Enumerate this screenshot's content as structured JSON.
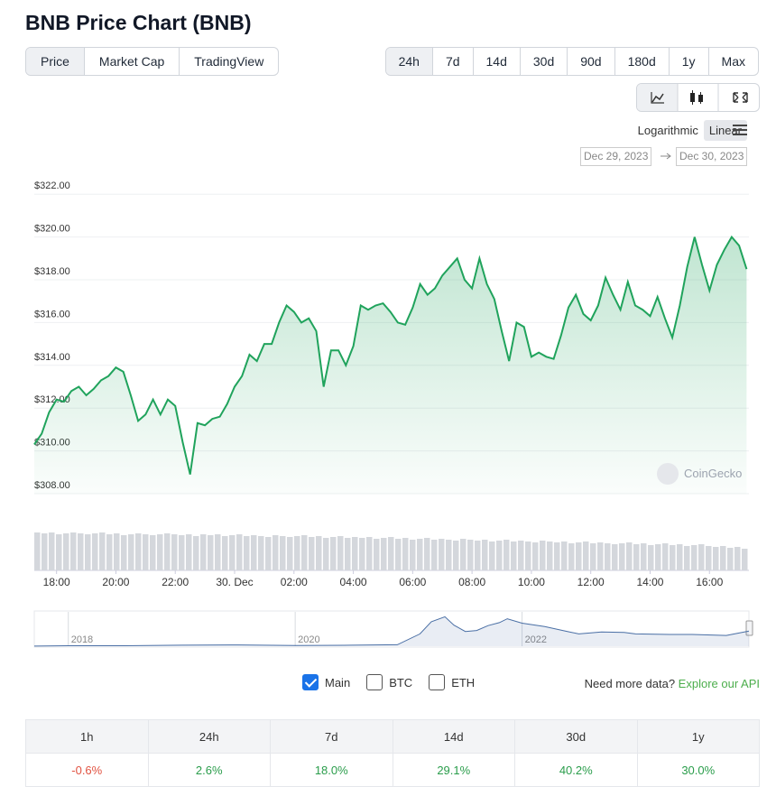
{
  "header": {
    "title": "BNB Price Chart (BNB)"
  },
  "tabs": [
    {
      "label": "Price",
      "active": true
    },
    {
      "label": "Market Cap",
      "active": false
    },
    {
      "label": "TradingView",
      "active": false
    }
  ],
  "ranges": [
    {
      "label": "24h",
      "active": true
    },
    {
      "label": "7d",
      "active": false
    },
    {
      "label": "14d",
      "active": false
    },
    {
      "label": "30d",
      "active": false
    },
    {
      "label": "90d",
      "active": false
    },
    {
      "label": "180d",
      "active": false
    },
    {
      "label": "1y",
      "active": false
    },
    {
      "label": "Max",
      "active": false
    }
  ],
  "scale": {
    "options": [
      {
        "label": "Logarithmic",
        "active": false
      },
      {
        "label": "Linear",
        "active": true
      }
    ]
  },
  "date_range": {
    "from": "Dec 29, 2023",
    "to": "Dec 30, 2023"
  },
  "chart_data": [
    {
      "type": "area",
      "color": "#20a35c",
      "x": [
        17.25,
        17.5,
        17.75,
        18,
        18.25,
        18.5,
        18.75,
        19,
        19.25,
        19.5,
        19.75,
        20,
        20.25,
        20.5,
        20.75,
        21,
        21.25,
        21.5,
        21.75,
        22,
        22.25,
        22.5,
        22.75,
        23,
        23.25,
        23.5,
        23.75,
        24,
        24.25,
        24.5,
        24.75,
        25,
        25.25,
        25.5,
        25.75,
        26,
        26.25,
        26.5,
        26.75,
        27,
        27.25,
        27.5,
        27.75,
        28,
        28.25,
        28.5,
        28.75,
        29,
        29.25,
        29.5,
        29.75,
        30,
        30.25,
        30.5,
        30.75,
        31,
        31.25,
        31.5,
        31.75,
        32,
        32.25,
        32.5,
        32.75,
        33,
        33.25,
        33.5,
        33.75,
        34,
        34.25,
        34.5,
        34.75,
        35,
        35.25,
        35.5,
        35.75,
        36,
        36.25,
        36.5,
        36.75,
        37,
        37.25,
        37.5,
        37.75,
        38,
        38.25,
        38.5,
        38.75,
        39,
        39.25,
        39.5,
        39.75,
        40,
        40.25,
        40.5,
        40.75,
        41,
        41.25
      ],
      "values": [
        310.3,
        310.8,
        311.8,
        312.4,
        312.3,
        312.8,
        313.0,
        312.6,
        312.9,
        313.3,
        313.5,
        313.9,
        313.7,
        312.6,
        311.4,
        311.7,
        312.4,
        311.7,
        312.4,
        312.1,
        310.4,
        308.9,
        311.3,
        311.2,
        311.5,
        311.6,
        312.2,
        313.0,
        313.5,
        314.5,
        314.2,
        315.0,
        315.0,
        316.0,
        316.8,
        316.5,
        316.0,
        316.2,
        315.6,
        313.0,
        314.7,
        314.7,
        314.0,
        314.9,
        316.8,
        316.6,
        316.8,
        316.9,
        316.5,
        316.0,
        315.9,
        316.7,
        317.8,
        317.3,
        317.6,
        318.2,
        318.6,
        319.0,
        318.0,
        317.6,
        319.0,
        317.8,
        317.1,
        315.6,
        314.2,
        316.0,
        315.8,
        314.4,
        314.6,
        314.4,
        314.3,
        315.4,
        316.7,
        317.3,
        316.4,
        316.1,
        316.8,
        318.1,
        317.3,
        316.6,
        317.9,
        316.8,
        316.6,
        316.3,
        317.2,
        316.2,
        315.3,
        316.8,
        318.6,
        320.0,
        318.7,
        317.5,
        318.7,
        319.4,
        320.0,
        319.6,
        318.5
      ],
      "xlim": [
        17.25,
        41.33
      ],
      "xticks": [
        {
          "value": 18,
          "label": "18:00"
        },
        {
          "value": 20,
          "label": "20:00"
        },
        {
          "value": 22,
          "label": "22:00"
        },
        {
          "value": 24,
          "label": "30. Dec"
        },
        {
          "value": 26,
          "label": "02:00"
        },
        {
          "value": 28,
          "label": "04:00"
        },
        {
          "value": 30,
          "label": "06:00"
        },
        {
          "value": 32,
          "label": "08:00"
        },
        {
          "value": 34,
          "label": "10:00"
        },
        {
          "value": 36,
          "label": "12:00"
        },
        {
          "value": 38,
          "label": "14:00"
        },
        {
          "value": 40,
          "label": "16:00"
        }
      ],
      "ylim": [
        308,
        322.6
      ],
      "yticks": [
        {
          "value": 308,
          "label": "$308.00"
        },
        {
          "value": 310,
          "label": "$310.00"
        },
        {
          "value": 312,
          "label": "$312.00"
        },
        {
          "value": 314,
          "label": "$314.00"
        },
        {
          "value": 316,
          "label": "$316.00"
        },
        {
          "value": 318,
          "label": "$318.00"
        },
        {
          "value": 320,
          "label": "$320.00"
        },
        {
          "value": 322,
          "label": "$322.00"
        }
      ],
      "grid": true
    },
    {
      "type": "bar",
      "color": "#d4d7dc",
      "values": [
        42,
        41,
        42,
        40,
        41,
        42,
        41,
        40,
        41,
        42,
        40,
        41,
        39,
        40,
        41,
        40,
        39,
        40,
        41,
        40,
        39,
        40,
        38,
        40,
        39,
        40,
        38,
        39,
        40,
        38,
        39,
        38,
        37,
        39,
        38,
        37,
        38,
        39,
        37,
        38,
        36,
        37,
        38,
        36,
        37,
        36,
        37,
        35,
        36,
        37,
        35,
        36,
        34,
        35,
        36,
        34,
        35,
        34,
        33,
        35,
        34,
        33,
        34,
        32,
        33,
        34,
        32,
        33,
        32,
        31,
        33,
        32,
        31,
        32,
        30,
        31,
        32,
        30,
        31,
        30,
        29,
        30,
        31,
        29,
        30,
        28,
        29,
        30,
        28,
        29,
        27,
        28,
        29,
        27,
        26,
        27,
        25,
        26,
        24
      ]
    },
    {
      "type": "line",
      "color": "#4a6fa5",
      "x": [
        2017.7,
        2018,
        2018.5,
        2019,
        2019.5,
        2020,
        2020.5,
        2020.9,
        2021.1,
        2021.2,
        2021.32,
        2021.4,
        2021.5,
        2021.6,
        2021.7,
        2021.8,
        2021.87,
        2022,
        2022.2,
        2022.4,
        2022.5,
        2022.7,
        2022.9,
        2023,
        2023.3,
        2023.5,
        2023.8,
        2024
      ],
      "values": [
        2,
        10,
        9,
        20,
        25,
        15,
        20,
        30,
        250,
        500,
        600,
        430,
        300,
        320,
        420,
        480,
        560,
        470,
        400,
        300,
        250,
        290,
        280,
        250,
        240,
        240,
        220,
        310
      ],
      "xlim": [
        2017.7,
        2024
      ],
      "ylim": [
        0,
        700
      ],
      "xticks": [
        2018,
        2020,
        2022
      ]
    }
  ],
  "watermark": "CoinGecko",
  "toggles": [
    {
      "label": "Main",
      "checked": true
    },
    {
      "label": "BTC",
      "checked": false
    },
    {
      "label": "ETH",
      "checked": false
    }
  ],
  "more_data": {
    "prompt": "Need more data?",
    "link": "Explore our API"
  },
  "performance": {
    "headers": [
      "1h",
      "24h",
      "7d",
      "14d",
      "30d",
      "1y"
    ],
    "values": [
      "-0.6%",
      "2.6%",
      "18.0%",
      "29.1%",
      "40.2%",
      "30.0%"
    ]
  }
}
